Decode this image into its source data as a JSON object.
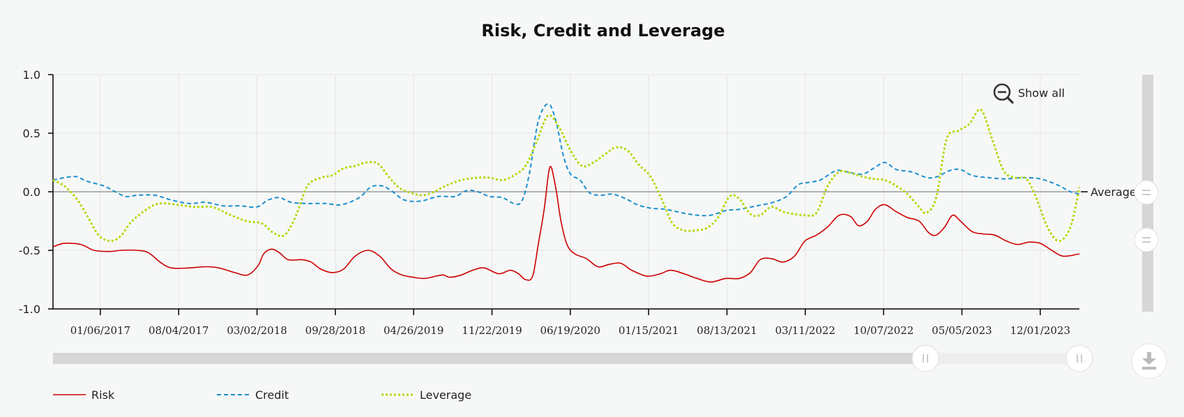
{
  "colors": {
    "risk": "#cc0000",
    "credit": "#1a8fd0",
    "leverage": "#b5d80f",
    "grid": "#e3e3e3",
    "zero_line": "#888888",
    "navigator_track": "#d6d6d6",
    "navigator_handle": "#ffffff"
  },
  "controls": {
    "show_all_label": "Show all",
    "zoom_out_icon": "zoom-out-icon",
    "download_icon": "download-icon"
  },
  "navigator": {
    "range_start_fraction": 0.85,
    "range_end_fraction": 1.0
  },
  "chart_data": {
    "type": "line",
    "title": "Risk, Credit and Leverage",
    "xlabel": "",
    "ylabel": "",
    "ylim": [
      -1.0,
      1.0
    ],
    "yticks": [
      "1.0",
      "0.5",
      "0.0",
      "-0.5",
      "-1.0"
    ],
    "x_start": "2016-09-01",
    "x_end": "2024-03-15",
    "xticks": [
      "01/06/2017",
      "08/04/2017",
      "03/02/2018",
      "09/28/2018",
      "04/26/2019",
      "11/22/2019",
      "06/19/2020",
      "01/15/2021",
      "08/13/2021",
      "03/11/2022",
      "10/07/2022",
      "05/05/2023",
      "12/01/2023"
    ],
    "grid": true,
    "legend_position": "bottom-left",
    "reference_line": {
      "label": "Average",
      "value": 0.0
    },
    "series": [
      {
        "name": "Risk",
        "style": "solid",
        "points": [
          [
            "2016-09-01",
            -0.47
          ],
          [
            "2016-10-01",
            -0.44
          ],
          [
            "2016-11-15",
            -0.45
          ],
          [
            "2016-12-20",
            -0.5
          ],
          [
            "2017-02-01",
            -0.51
          ],
          [
            "2017-03-01",
            -0.5
          ],
          [
            "2017-04-15",
            -0.5
          ],
          [
            "2017-05-15",
            -0.52
          ],
          [
            "2017-06-15",
            -0.6
          ],
          [
            "2017-07-15",
            -0.65
          ],
          [
            "2017-09-01",
            -0.65
          ],
          [
            "2017-10-15",
            -0.64
          ],
          [
            "2017-11-20",
            -0.65
          ],
          [
            "2018-01-01",
            -0.69
          ],
          [
            "2018-02-05",
            -0.71
          ],
          [
            "2018-03-05",
            -0.63
          ],
          [
            "2018-03-20",
            -0.53
          ],
          [
            "2018-04-10",
            -0.49
          ],
          [
            "2018-05-01",
            -0.52
          ],
          [
            "2018-05-25",
            -0.58
          ],
          [
            "2018-07-01",
            -0.58
          ],
          [
            "2018-07-25",
            -0.6
          ],
          [
            "2018-08-20",
            -0.66
          ],
          [
            "2018-09-20",
            -0.69
          ],
          [
            "2018-10-20",
            -0.66
          ],
          [
            "2018-11-20",
            -0.55
          ],
          [
            "2018-12-25",
            -0.5
          ],
          [
            "2019-01-25",
            -0.55
          ],
          [
            "2019-02-25",
            -0.66
          ],
          [
            "2019-03-25",
            -0.71
          ],
          [
            "2019-04-25",
            -0.73
          ],
          [
            "2019-05-25",
            -0.74
          ],
          [
            "2019-06-25",
            -0.72
          ],
          [
            "2019-07-15",
            -0.71
          ],
          [
            "2019-08-01",
            -0.73
          ],
          [
            "2019-09-01",
            -0.71
          ],
          [
            "2019-10-01",
            -0.67
          ],
          [
            "2019-11-01",
            -0.65
          ],
          [
            "2019-12-10",
            -0.7
          ],
          [
            "2020-01-10",
            -0.67
          ],
          [
            "2020-02-01",
            -0.7
          ],
          [
            "2020-02-20",
            -0.75
          ],
          [
            "2020-03-10",
            -0.72
          ],
          [
            "2020-03-25",
            -0.45
          ],
          [
            "2020-04-10",
            -0.15
          ],
          [
            "2020-04-25",
            0.21
          ],
          [
            "2020-05-10",
            0.05
          ],
          [
            "2020-05-25",
            -0.25
          ],
          [
            "2020-06-10",
            -0.45
          ],
          [
            "2020-07-01",
            -0.53
          ],
          [
            "2020-08-01",
            -0.57
          ],
          [
            "2020-09-01",
            -0.64
          ],
          [
            "2020-10-01",
            -0.62
          ],
          [
            "2020-11-01",
            -0.61
          ],
          [
            "2020-12-01",
            -0.67
          ],
          [
            "2021-01-10",
            -0.72
          ],
          [
            "2021-02-15",
            -0.7
          ],
          [
            "2021-03-15",
            -0.67
          ],
          [
            "2021-04-20",
            -0.7
          ],
          [
            "2021-05-25",
            -0.74
          ],
          [
            "2021-07-01",
            -0.77
          ],
          [
            "2021-08-10",
            -0.74
          ],
          [
            "2021-09-15",
            -0.74
          ],
          [
            "2021-10-15",
            -0.69
          ],
          [
            "2021-11-10",
            -0.58
          ],
          [
            "2021-12-10",
            -0.57
          ],
          [
            "2022-01-10",
            -0.6
          ],
          [
            "2022-02-10",
            -0.55
          ],
          [
            "2022-03-10",
            -0.42
          ],
          [
            "2022-04-10",
            -0.37
          ],
          [
            "2022-05-10",
            -0.3
          ],
          [
            "2022-06-10",
            -0.2
          ],
          [
            "2022-07-10",
            -0.21
          ],
          [
            "2022-08-01",
            -0.29
          ],
          [
            "2022-08-25",
            -0.25
          ],
          [
            "2022-09-15",
            -0.15
          ],
          [
            "2022-10-10",
            -0.11
          ],
          [
            "2022-11-10",
            -0.17
          ],
          [
            "2022-12-10",
            -0.22
          ],
          [
            "2023-01-10",
            -0.25
          ],
          [
            "2023-02-05",
            -0.35
          ],
          [
            "2023-02-25",
            -0.37
          ],
          [
            "2023-03-20",
            -0.3
          ],
          [
            "2023-04-10",
            -0.2
          ],
          [
            "2023-05-01",
            -0.25
          ],
          [
            "2023-06-01",
            -0.34
          ],
          [
            "2023-07-01",
            -0.36
          ],
          [
            "2023-08-01",
            -0.37
          ],
          [
            "2023-09-01",
            -0.42
          ],
          [
            "2023-10-01",
            -0.45
          ],
          [
            "2023-11-01",
            -0.43
          ],
          [
            "2023-12-01",
            -0.44
          ],
          [
            "2024-01-01",
            -0.5
          ],
          [
            "2024-02-01",
            -0.55
          ],
          [
            "2024-03-15",
            -0.53
          ]
        ]
      },
      {
        "name": "Credit",
        "style": "dashed",
        "points": [
          [
            "2016-09-01",
            0.1
          ],
          [
            "2016-10-01",
            0.12
          ],
          [
            "2016-11-01",
            0.13
          ],
          [
            "2016-12-01",
            0.09
          ],
          [
            "2017-01-15",
            0.05
          ],
          [
            "2017-02-15",
            0.0
          ],
          [
            "2017-03-15",
            -0.04
          ],
          [
            "2017-04-15",
            -0.03
          ],
          [
            "2017-06-01",
            -0.03
          ],
          [
            "2017-07-15",
            -0.07
          ],
          [
            "2017-09-01",
            -0.1
          ],
          [
            "2017-10-15",
            -0.09
          ],
          [
            "2017-12-01",
            -0.12
          ],
          [
            "2018-01-15",
            -0.12
          ],
          [
            "2018-03-01",
            -0.13
          ],
          [
            "2018-04-01",
            -0.07
          ],
          [
            "2018-05-01",
            -0.05
          ],
          [
            "2018-06-01",
            -0.09
          ],
          [
            "2018-07-15",
            -0.1
          ],
          [
            "2018-09-01",
            -0.1
          ],
          [
            "2018-10-15",
            -0.11
          ],
          [
            "2018-12-01",
            -0.05
          ],
          [
            "2019-01-01",
            0.04
          ],
          [
            "2019-02-01",
            0.05
          ],
          [
            "2019-03-01",
            0.0
          ],
          [
            "2019-04-01",
            -0.07
          ],
          [
            "2019-05-15",
            -0.08
          ],
          [
            "2019-07-01",
            -0.04
          ],
          [
            "2019-08-15",
            -0.04
          ],
          [
            "2019-09-15",
            0.01
          ],
          [
            "2019-10-15",
            0.0
          ],
          [
            "2019-11-15",
            -0.04
          ],
          [
            "2019-12-20",
            -0.05
          ],
          [
            "2020-01-20",
            -0.1
          ],
          [
            "2020-02-10",
            -0.08
          ],
          [
            "2020-03-01",
            0.15
          ],
          [
            "2020-03-25",
            0.6
          ],
          [
            "2020-04-20",
            0.75
          ],
          [
            "2020-05-10",
            0.62
          ],
          [
            "2020-06-01",
            0.3
          ],
          [
            "2020-06-20",
            0.15
          ],
          [
            "2020-07-15",
            0.1
          ],
          [
            "2020-08-10",
            -0.01
          ],
          [
            "2020-09-10",
            -0.03
          ],
          [
            "2020-10-10",
            -0.02
          ],
          [
            "2020-11-15",
            -0.06
          ],
          [
            "2020-12-15",
            -0.11
          ],
          [
            "2021-01-20",
            -0.14
          ],
          [
            "2021-03-01",
            -0.15
          ],
          [
            "2021-04-15",
            -0.18
          ],
          [
            "2021-05-25",
            -0.2
          ],
          [
            "2021-07-01",
            -0.2
          ],
          [
            "2021-08-10",
            -0.16
          ],
          [
            "2021-09-15",
            -0.15
          ],
          [
            "2021-11-01",
            -0.12
          ],
          [
            "2021-12-15",
            -0.09
          ],
          [
            "2022-01-20",
            -0.04
          ],
          [
            "2022-02-20",
            0.06
          ],
          [
            "2022-03-20",
            0.08
          ],
          [
            "2022-04-20",
            0.1
          ],
          [
            "2022-06-01",
            0.18
          ],
          [
            "2022-07-01",
            0.17
          ],
          [
            "2022-08-10",
            0.15
          ],
          [
            "2022-09-10",
            0.2
          ],
          [
            "2022-10-10",
            0.25
          ],
          [
            "2022-11-10",
            0.19
          ],
          [
            "2022-12-20",
            0.17
          ],
          [
            "2023-02-01",
            0.12
          ],
          [
            "2023-03-01",
            0.13
          ],
          [
            "2023-04-01",
            0.18
          ],
          [
            "2023-05-01",
            0.19
          ],
          [
            "2023-06-01",
            0.14
          ],
          [
            "2023-07-15",
            0.12
          ],
          [
            "2023-09-01",
            0.11
          ],
          [
            "2023-10-15",
            0.12
          ],
          [
            "2023-12-01",
            0.11
          ],
          [
            "2024-01-15",
            0.06
          ],
          [
            "2024-02-20",
            0.0
          ],
          [
            "2024-03-15",
            -0.02
          ]
        ]
      },
      {
        "name": "Leverage",
        "style": "dotted",
        "points": [
          [
            "2016-09-01",
            0.1
          ],
          [
            "2016-10-01",
            0.05
          ],
          [
            "2016-11-01",
            -0.05
          ],
          [
            "2016-12-01",
            -0.2
          ],
          [
            "2017-01-01",
            -0.37
          ],
          [
            "2017-02-01",
            -0.42
          ],
          [
            "2017-03-01",
            -0.38
          ],
          [
            "2017-04-01",
            -0.25
          ],
          [
            "2017-05-15",
            -0.14
          ],
          [
            "2017-06-15",
            -0.1
          ],
          [
            "2017-08-01",
            -0.11
          ],
          [
            "2017-09-15",
            -0.13
          ],
          [
            "2017-11-01",
            -0.13
          ],
          [
            "2017-12-15",
            -0.19
          ],
          [
            "2018-02-01",
            -0.25
          ],
          [
            "2018-03-15",
            -0.27
          ],
          [
            "2018-04-15",
            -0.35
          ],
          [
            "2018-05-15",
            -0.37
          ],
          [
            "2018-06-15",
            -0.2
          ],
          [
            "2018-07-15",
            0.05
          ],
          [
            "2018-08-20",
            0.12
          ],
          [
            "2018-09-20",
            0.14
          ],
          [
            "2018-10-20",
            0.2
          ],
          [
            "2018-11-20",
            0.22
          ],
          [
            "2018-12-20",
            0.25
          ],
          [
            "2019-01-20",
            0.24
          ],
          [
            "2019-02-20",
            0.12
          ],
          [
            "2019-03-20",
            0.03
          ],
          [
            "2019-04-20",
            -0.01
          ],
          [
            "2019-05-20",
            -0.03
          ],
          [
            "2019-06-20",
            0.0
          ],
          [
            "2019-07-20",
            0.05
          ],
          [
            "2019-09-01",
            0.1
          ],
          [
            "2019-10-15",
            0.12
          ],
          [
            "2019-11-15",
            0.12
          ],
          [
            "2019-12-20",
            0.1
          ],
          [
            "2020-01-20",
            0.14
          ],
          [
            "2020-02-20",
            0.22
          ],
          [
            "2020-03-20",
            0.42
          ],
          [
            "2020-04-20",
            0.65
          ],
          [
            "2020-05-20",
            0.55
          ],
          [
            "2020-06-20",
            0.35
          ],
          [
            "2020-07-20",
            0.22
          ],
          [
            "2020-08-20",
            0.25
          ],
          [
            "2020-09-20",
            0.32
          ],
          [
            "2020-10-20",
            0.38
          ],
          [
            "2020-11-20",
            0.35
          ],
          [
            "2020-12-20",
            0.23
          ],
          [
            "2021-01-20",
            0.13
          ],
          [
            "2021-02-20",
            -0.07
          ],
          [
            "2021-03-20",
            -0.27
          ],
          [
            "2021-04-20",
            -0.33
          ],
          [
            "2021-05-20",
            -0.33
          ],
          [
            "2021-06-20",
            -0.31
          ],
          [
            "2021-07-20",
            -0.22
          ],
          [
            "2021-08-20",
            -0.04
          ],
          [
            "2021-09-15",
            -0.06
          ],
          [
            "2021-10-15",
            -0.19
          ],
          [
            "2021-11-10",
            -0.2
          ],
          [
            "2021-12-10",
            -0.13
          ],
          [
            "2022-01-10",
            -0.17
          ],
          [
            "2022-02-10",
            -0.19
          ],
          [
            "2022-03-10",
            -0.2
          ],
          [
            "2022-04-10",
            -0.18
          ],
          [
            "2022-05-10",
            0.05
          ],
          [
            "2022-06-10",
            0.17
          ],
          [
            "2022-07-10",
            0.16
          ],
          [
            "2022-08-10",
            0.13
          ],
          [
            "2022-09-10",
            0.11
          ],
          [
            "2022-10-10",
            0.1
          ],
          [
            "2022-11-10",
            0.05
          ],
          [
            "2022-12-10",
            -0.02
          ],
          [
            "2023-01-10",
            -0.13
          ],
          [
            "2023-01-30",
            -0.18
          ],
          [
            "2023-02-25",
            -0.05
          ],
          [
            "2023-03-25",
            0.45
          ],
          [
            "2023-04-25",
            0.52
          ],
          [
            "2023-05-25",
            0.58
          ],
          [
            "2023-06-25",
            0.7
          ],
          [
            "2023-07-25",
            0.45
          ],
          [
            "2023-08-25",
            0.18
          ],
          [
            "2023-09-25",
            0.12
          ],
          [
            "2023-10-25",
            0.11
          ],
          [
            "2023-11-20",
            -0.05
          ],
          [
            "2023-12-20",
            -0.3
          ],
          [
            "2024-01-20",
            -0.42
          ],
          [
            "2024-02-20",
            -0.3
          ],
          [
            "2024-03-15",
            0.04
          ]
        ]
      }
    ]
  }
}
